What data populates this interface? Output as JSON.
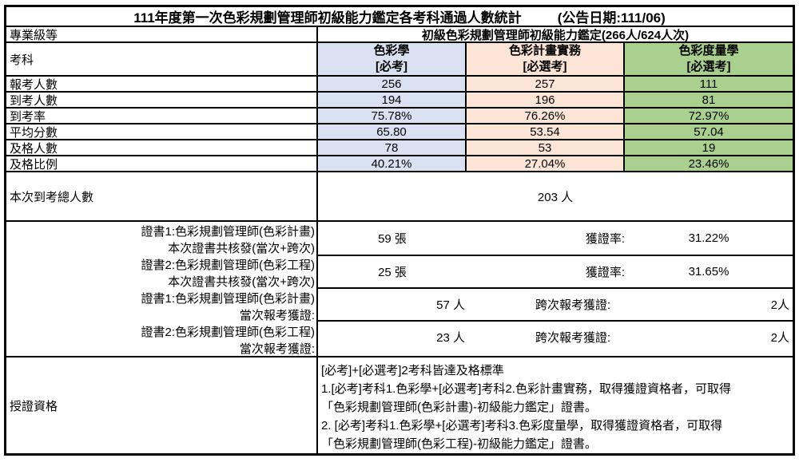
{
  "title": "111年度第一次色彩規劃管理師初級能力鑑定各考科通過人數統計",
  "announce_date": "(公告日期:111/06)",
  "level_row": {
    "label": "專業級等",
    "value": "初級色彩規劃管理師初級能力鑑定(266人/624人次)"
  },
  "subject_header": {
    "label": "考科",
    "columns": [
      {
        "name": "色彩學",
        "tag": "[必考]"
      },
      {
        "name": "色彩計畫實務",
        "tag": "[必選考]"
      },
      {
        "name": "色彩度量學",
        "tag": "[必選考]"
      }
    ]
  },
  "colors": {
    "col_colorology": "#D9E1F2",
    "col_color_plan": "#FCE4D6",
    "col_colorimetry": "#A9D08E",
    "border": "#000000"
  },
  "stat_rows": [
    {
      "label": "報考人數",
      "values": [
        "256",
        "257",
        "111"
      ]
    },
    {
      "label": "到考人數",
      "values": [
        "194",
        "196",
        "81"
      ]
    },
    {
      "label": "到考率",
      "values": [
        "75.78%",
        "76.26%",
        "72.97%"
      ]
    },
    {
      "label": "平均分數",
      "values": [
        "65.80",
        "53.54",
        "57.04"
      ]
    },
    {
      "label": "及格人數",
      "values": [
        "78",
        "53",
        "19"
      ]
    },
    {
      "label": "及格比例",
      "values": [
        "40.21%",
        "27.04%",
        "23.46%"
      ]
    }
  ],
  "total_row": {
    "label": "本次到考總人數",
    "value": "203 人"
  },
  "cert_labels": [
    "證書1:色彩規劃管理師(色彩計畫)",
    "本次證書共核發(當次+跨次)",
    "證書2:色彩規劃管理師(色彩工程)",
    "本次證書共核發(當次+跨次)",
    "證書1:色彩規劃管理師(色彩計畫)",
    "當次報考獲證:",
    "證書2:色彩規劃管理師(色彩工程)",
    "當次報考獲證:"
  ],
  "cert_rows": [
    {
      "count": "59 張",
      "rate_label": "獲證率:",
      "rate": "31.22%"
    },
    {
      "count": "25 張",
      "rate_label": "獲證率:",
      "rate": "31.65%"
    },
    {
      "count": "57 人",
      "rate_label": "跨次報考獲證:",
      "rate": "2人"
    },
    {
      "count": "23 人",
      "rate_label": "跨次報考獲證:",
      "rate": "2人"
    }
  ],
  "qualification": {
    "label": "授證資格",
    "lines": [
      "[必考]+[必選考]2考科皆達及格標準",
      "1.[必考]考科1.色彩學+[必選考]考科2.色彩計畫實務，取得獲證資格者，可取得",
      "「色彩規劃管理師(色彩計畫)-初級能力鑑定」證書。",
      "2. [必考]考科1.色彩學+[必選考]考科3.色彩度量學，取得獲證資格者，可取得",
      "「色彩規劃管理師(色彩工程)-初級能力鑑定」證書。"
    ]
  }
}
